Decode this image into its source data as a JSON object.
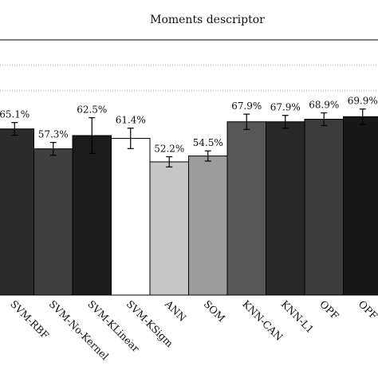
{
  "chart_data": {
    "type": "bar",
    "title": "Moments descriptor",
    "xlabel": "",
    "ylabel": "",
    "ylim": [
      0,
      100
    ],
    "grid": "dotted horizontal",
    "categories": [
      "SVM-RBF",
      "SVM-No-Kernel",
      "SVM-KLinear",
      "SVM-KSigm",
      "ANN",
      "SOM",
      "KNN-CAN",
      "KNN-L1",
      "OPF",
      "OPF"
    ],
    "values": [
      65.1,
      57.3,
      62.5,
      61.4,
      52.2,
      54.5,
      67.9,
      67.9,
      68.9,
      69.9
    ],
    "value_labels": [
      "65.1%",
      "57.3%",
      "62.5%",
      "61.4%",
      "52.2%",
      "54.5%",
      "67.9%",
      "67.9%",
      "68.9%",
      "69.9%"
    ],
    "error": [
      2.5,
      2.5,
      7.0,
      4.0,
      2.0,
      2.0,
      3.0,
      2.5,
      2.5,
      3.0
    ],
    "bar_colors": [
      "#2b2b2b",
      "#3f3f3f",
      "#1c1c1c",
      "#ffffff",
      "#c6c6c6",
      "#9c9c9c",
      "#575757",
      "#282828",
      "#3b3b3b",
      "#181818"
    ]
  }
}
